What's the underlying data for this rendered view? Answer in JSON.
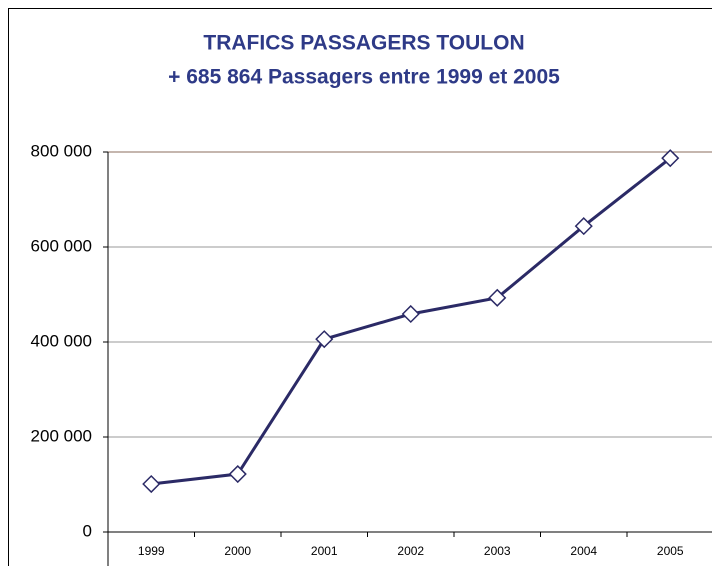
{
  "chart_data": {
    "type": "line",
    "title": "TRAFICS PASSAGERS TOULON",
    "subtitle": "+ 685 864 Passagers entre 1999 et 2005",
    "categories": [
      "1999",
      "2000",
      "2001",
      "2002",
      "2003",
      "2004",
      "2005"
    ],
    "series": [
      {
        "name": "Passagers",
        "color": "#2b2a66",
        "values": [
          101000,
          122000,
          406000,
          459000,
          493000,
          644000,
          787000
        ]
      }
    ],
    "ylim": [
      0,
      800000
    ],
    "yticks": [
      0,
      {
        "value": 200000,
        "label": "200 000"
      },
      {
        "value": 400000,
        "label": "400 000"
      },
      {
        "value": 600000,
        "label": "600 000"
      },
      {
        "value": 800000,
        "label": "800 000"
      }
    ],
    "grid": true
  }
}
